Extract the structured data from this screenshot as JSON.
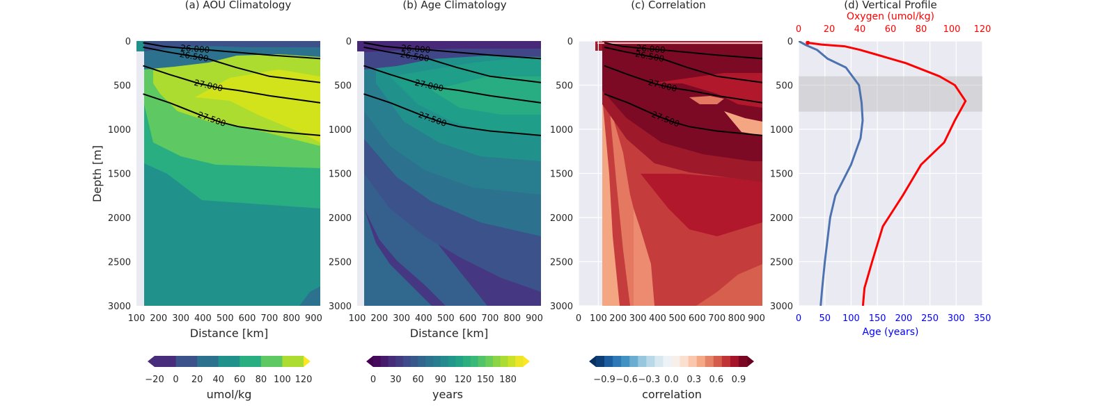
{
  "chart_data": [
    {
      "type": "heatmap",
      "title": "(a) AOU Climatology",
      "xlabel": "Distance [km]",
      "ylabel": "Depth [m]",
      "xlim": [
        100,
        930
      ],
      "ylim": [
        0,
        3000
      ],
      "y_inverted": true,
      "xticks": [
        100,
        200,
        300,
        400,
        500,
        600,
        700,
        800,
        900
      ],
      "yticks": [
        0,
        500,
        1000,
        1500,
        2000,
        2500,
        3000
      ],
      "colormap": "viridis",
      "colorbar": {
        "label": "umol/kg",
        "ticks": [
          -20,
          0,
          20,
          40,
          60,
          80,
          100,
          120
        ],
        "extend": "both"
      },
      "fill_levels": [
        {
          "level": "-20 to 0",
          "color": "#472d7b"
        },
        {
          "level": "0 to 20",
          "color": "#3b528b"
        },
        {
          "level": "20 to 40",
          "color": "#2c728e"
        },
        {
          "level": "40 to 60",
          "color": "#21918c"
        },
        {
          "level": "60 to 80",
          "color": "#28ae80"
        },
        {
          "level": "80 to 100",
          "color": "#5ec962"
        },
        {
          "level": "100 to 120",
          "color": "#addc30"
        },
        {
          "level": "120+",
          "color": "#d2e21b"
        }
      ],
      "density_contours": [
        {
          "label": "26.000",
          "x": [
            130,
            220,
            310,
            420,
            560,
            700,
            930
          ],
          "y": [
            20,
            60,
            80,
            100,
            130,
            160,
            200
          ]
        },
        {
          "label": "26.500",
          "x": [
            130,
            230,
            300,
            420,
            550,
            700,
            930
          ],
          "y": [
            70,
            120,
            150,
            200,
            300,
            400,
            470
          ]
        },
        {
          "label": "27.000",
          "x": [
            130,
            250,
            380,
            470,
            560,
            700,
            930
          ],
          "y": [
            280,
            380,
            480,
            530,
            560,
            620,
            700
          ]
        },
        {
          "label": "27.500",
          "x": [
            130,
            250,
            400,
            480,
            560,
            700,
            930
          ],
          "y": [
            600,
            700,
            850,
            920,
            970,
            1020,
            1070
          ]
        }
      ]
    },
    {
      "type": "heatmap",
      "title": "(b) Age Climatology",
      "xlabel": "Distance [km]",
      "xlim": [
        100,
        930
      ],
      "ylim": [
        0,
        3000
      ],
      "y_inverted": true,
      "xticks": [
        100,
        200,
        300,
        400,
        500,
        600,
        700,
        800,
        900
      ],
      "yticks": [
        0,
        500,
        1000,
        1500,
        2000,
        2500,
        3000
      ],
      "colormap": "viridis",
      "colorbar": {
        "label": "years",
        "ticks": [
          0,
          30,
          60,
          90,
          120,
          150,
          180
        ],
        "extend": "both"
      },
      "density_contours": [
        {
          "label": "26.000",
          "x": [
            130,
            220,
            310,
            420,
            560,
            700,
            930
          ],
          "y": [
            20,
            60,
            80,
            100,
            130,
            160,
            200
          ]
        },
        {
          "label": "26.500",
          "x": [
            130,
            230,
            300,
            420,
            550,
            700,
            930
          ],
          "y": [
            70,
            120,
            150,
            200,
            300,
            400,
            470
          ]
        },
        {
          "label": "27.000",
          "x": [
            130,
            250,
            380,
            470,
            560,
            700,
            930
          ],
          "y": [
            280,
            380,
            480,
            530,
            560,
            620,
            700
          ]
        },
        {
          "label": "27.500",
          "x": [
            130,
            250,
            400,
            480,
            560,
            700,
            930
          ],
          "y": [
            600,
            700,
            850,
            920,
            970,
            1020,
            1070
          ]
        }
      ]
    },
    {
      "type": "heatmap",
      "title": "(c) Correlation",
      "xlim": [
        0,
        930
      ],
      "ylim": [
        0,
        3000
      ],
      "y_inverted": true,
      "xticks": [
        0,
        100,
        200,
        300,
        400,
        500,
        600,
        700,
        800,
        900
      ],
      "yticks": [
        0,
        500,
        1000,
        1500,
        2000,
        2500,
        3000
      ],
      "colormap": "RdBu_r",
      "colorbar": {
        "label": "correlation",
        "ticks": [
          "−0.9",
          "−0.6",
          "−0.3",
          "0.0",
          "0.3",
          "0.6",
          "0.9"
        ],
        "extend": "both"
      },
      "density_contours": [
        {
          "label": "26.000",
          "x": [
            130,
            220,
            310,
            420,
            560,
            700,
            930
          ],
          "y": [
            20,
            60,
            80,
            100,
            130,
            160,
            200
          ]
        },
        {
          "label": "26.500",
          "x": [
            130,
            230,
            300,
            420,
            550,
            700,
            930
          ],
          "y": [
            70,
            120,
            150,
            200,
            300,
            400,
            470
          ]
        },
        {
          "label": "27.000",
          "x": [
            130,
            250,
            380,
            470,
            560,
            700,
            930
          ],
          "y": [
            280,
            380,
            480,
            530,
            560,
            620,
            700
          ]
        },
        {
          "label": "27.500",
          "x": [
            130,
            250,
            400,
            480,
            560,
            700,
            930
          ],
          "y": [
            600,
            700,
            850,
            920,
            970,
            1020,
            1070
          ]
        }
      ]
    },
    {
      "type": "line",
      "title": "(d) Vertical Profile",
      "ylim": [
        0,
        3000
      ],
      "y_inverted": true,
      "yticks": [
        0,
        500,
        1000,
        1500,
        2000,
        2500,
        3000
      ],
      "bottom_axis": {
        "label": "Age (years)",
        "color": "#0000ff",
        "lim": [
          0,
          350
        ],
        "ticks": [
          0,
          50,
          100,
          150,
          200,
          250,
          300,
          350
        ]
      },
      "top_axis": {
        "label": "Oxygen (umol/kg)",
        "color": "#ff0000",
        "lim": [
          0,
          120
        ],
        "ticks": [
          0,
          20,
          40,
          60,
          80,
          100,
          120
        ]
      },
      "shaded_band": {
        "depth_from": 400,
        "depth_to": 800,
        "color": "#bbbbbb"
      },
      "series": [
        {
          "axis": "bottom",
          "color": "#4c72b0",
          "x": [
            0,
            15,
            35,
            55,
            90,
            115,
            120,
            122,
            118,
            100,
            70,
            60,
            50,
            45,
            42
          ],
          "y": [
            0,
            50,
            100,
            200,
            300,
            500,
            700,
            900,
            1100,
            1400,
            1750,
            2000,
            2500,
            2800,
            3000
          ]
        },
        {
          "axis": "top",
          "color": "#ff0000",
          "x": [
            6,
            15,
            30,
            40,
            50,
            70,
            92,
            102,
            109,
            102,
            95,
            80,
            68,
            55,
            48,
            43,
            42
          ],
          "y": [
            20,
            40,
            60,
            100,
            150,
            250,
            400,
            500,
            680,
            900,
            1150,
            1400,
            1750,
            2100,
            2500,
            2800,
            3000
          ]
        }
      ]
    }
  ]
}
